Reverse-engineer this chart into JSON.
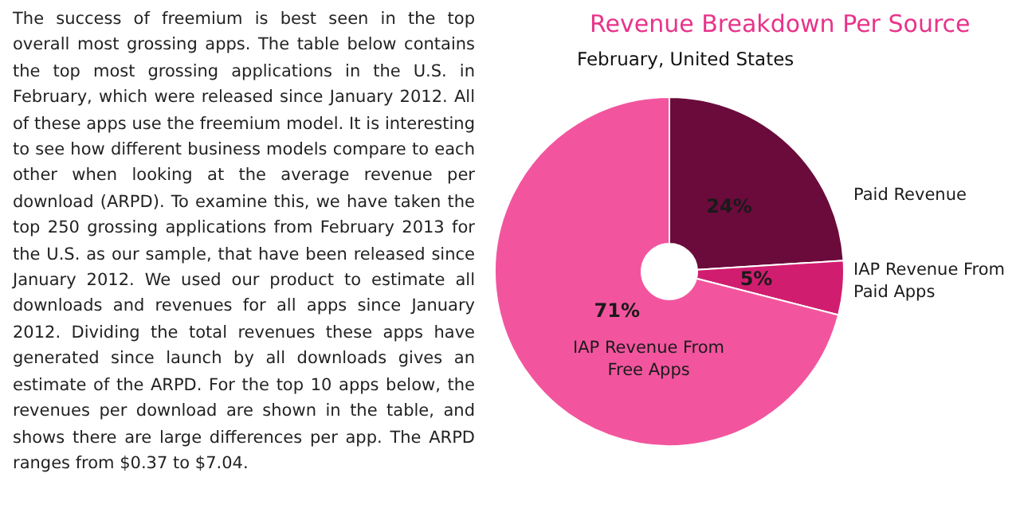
{
  "chart_data": {
    "type": "donut",
    "title": "Revenue Breakdown Per Source",
    "subtitle": "February, United States",
    "categories": [
      "Paid Revenue",
      "IAP Revenue From Paid Apps",
      "IAP Revenue From Free Apps"
    ],
    "values": [
      24,
      5,
      71
    ],
    "value_labels": [
      "24%",
      "5%",
      "71%"
    ],
    "colors": [
      "#6b0b3b",
      "#d11d6f",
      "#f2559e"
    ],
    "annotations": [
      "The success of freemium is best seen in the top overall most grossing apps. The table below contains the top most grossing applications in the U.S. in February, which were released since January 2012. All of these apps use the freemium model. It is interesting to see how different business models compare to each other when looking at the average revenue per download (ARPD). To examine this, we have taken the top 250 grossing applications from February 2013 for the U.S. as our sample, that have been released since January 2012. We used our product to estimate all downloads and revenues for all apps since January 2012. Dividing the total revenues these apps have generated since launch by all downloads gives an estimate of the ARPD. For the top 10 apps below, the revenues per download are shown in the table, and shows there are large differences per app. The ARPD ranges from $0.37 to $7.04."
    ]
  }
}
